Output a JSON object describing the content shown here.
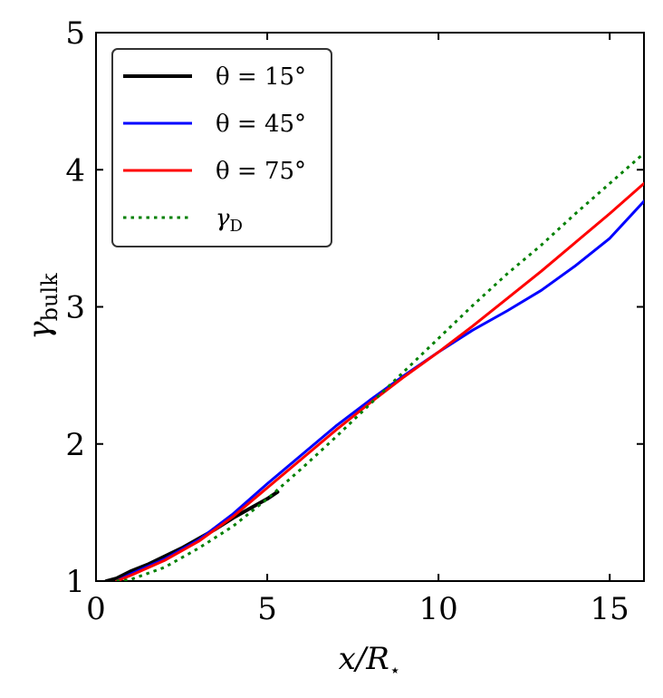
{
  "chart_data": {
    "type": "line",
    "xlabel": "x/R⋆",
    "ylabel": "γbulk",
    "ylabel_main": "γ",
    "ylabel_sub": "bulk",
    "xlim": [
      0,
      16
    ],
    "ylim": [
      1,
      5
    ],
    "xticks": [
      0,
      5,
      10,
      15
    ],
    "yticks": [
      1,
      2,
      3,
      4,
      5
    ],
    "grid": false,
    "legend_position": "top-left",
    "series": [
      {
        "name": "θ = 15°",
        "color": "#000000",
        "style": "solid",
        "x": [
          0.3,
          0.6,
          1.0,
          1.5,
          2.0,
          2.5,
          3.0,
          3.5,
          4.0,
          4.5,
          5.0,
          5.3
        ],
        "y": [
          1.0,
          1.02,
          1.07,
          1.12,
          1.18,
          1.24,
          1.31,
          1.38,
          1.46,
          1.53,
          1.6,
          1.65
        ]
      },
      {
        "name": "θ = 45°",
        "color": "#0000ff",
        "style": "solid",
        "x": [
          0.6,
          1.0,
          2.0,
          3.0,
          4.0,
          5.0,
          6.0,
          7.0,
          8.0,
          9.0,
          10.0,
          11.0,
          12.0,
          13.0,
          14.0,
          15.0,
          16.0
        ],
        "y": [
          1.0,
          1.05,
          1.16,
          1.3,
          1.49,
          1.71,
          1.92,
          2.13,
          2.32,
          2.5,
          2.67,
          2.83,
          2.97,
          3.12,
          3.3,
          3.5,
          3.77
        ]
      },
      {
        "name": "θ = 75°",
        "color": "#ff0000",
        "style": "solid",
        "x": [
          0.6,
          1.0,
          2.0,
          3.0,
          4.0,
          5.0,
          6.0,
          7.0,
          8.0,
          9.0,
          10.0,
          11.0,
          12.0,
          13.0,
          14.0,
          15.0,
          16.0
        ],
        "y": [
          1.0,
          1.04,
          1.15,
          1.29,
          1.47,
          1.68,
          1.89,
          2.1,
          2.3,
          2.49,
          2.67,
          2.86,
          3.06,
          3.26,
          3.47,
          3.68,
          3.9
        ]
      },
      {
        "name": "γD",
        "name_main": "γ",
        "name_sub": "D",
        "color": "#008000",
        "style": "dotted",
        "x": [
          0.6,
          1.0,
          2.0,
          3.0,
          4.0,
          5.0,
          6.0,
          7.0,
          8.0,
          9.0,
          10.0,
          11.0,
          12.0,
          13.0,
          14.0,
          15.0,
          16.0
        ],
        "y": [
          1.0,
          1.01,
          1.1,
          1.24,
          1.4,
          1.6,
          1.82,
          2.05,
          2.29,
          2.53,
          2.77,
          3.01,
          3.24,
          3.45,
          3.68,
          3.9,
          4.12
        ]
      }
    ]
  }
}
